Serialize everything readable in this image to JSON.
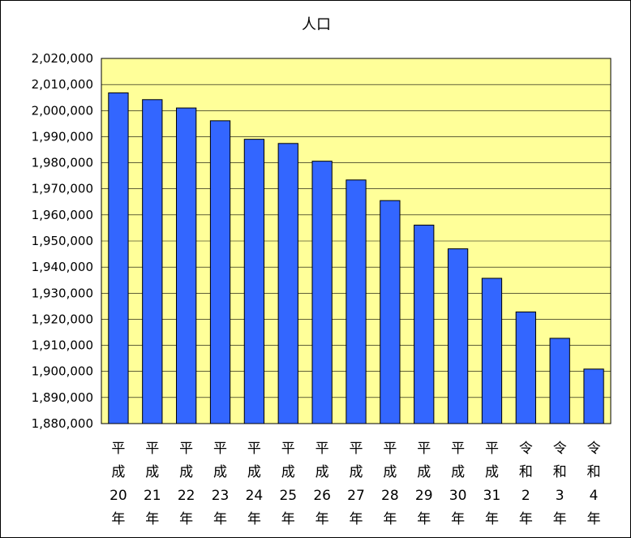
{
  "chart_data": {
    "type": "bar",
    "title": "人口",
    "xlabel": "",
    "ylabel": "",
    "ylim": [
      1880000,
      2020000
    ],
    "ytick_step": 10000,
    "grid": true,
    "legend": "none",
    "colors": {
      "plot_bg": "#ffff99",
      "bar_fill": "#3366ff",
      "bar_stroke": "#000000",
      "grid": "#000000"
    },
    "categories": [
      [
        "平",
        "成",
        "20",
        "年"
      ],
      [
        "平",
        "成",
        "21",
        "年"
      ],
      [
        "平",
        "成",
        "22",
        "年"
      ],
      [
        "平",
        "成",
        "23",
        "年"
      ],
      [
        "平",
        "成",
        "24",
        "年"
      ],
      [
        "平",
        "成",
        "25",
        "年"
      ],
      [
        "平",
        "成",
        "26",
        "年"
      ],
      [
        "平",
        "成",
        "27",
        "年"
      ],
      [
        "平",
        "成",
        "28",
        "年"
      ],
      [
        "平",
        "成",
        "29",
        "年"
      ],
      [
        "平",
        "成",
        "30",
        "年"
      ],
      [
        "平",
        "成",
        "31",
        "年"
      ],
      [
        "令",
        "和",
        "2",
        "年"
      ],
      [
        "令",
        "和",
        "3",
        "年"
      ],
      [
        "令",
        "和",
        "4",
        "年"
      ]
    ],
    "values": [
      2006800,
      2004200,
      2001000,
      1996100,
      1989000,
      1987400,
      1980600,
      1973400,
      1965500,
      1956100,
      1947000,
      1935700,
      1922800,
      1912700,
      1900900
    ],
    "ytick_labels": [
      "2,020,000",
      "2,010,000",
      "2,000,000",
      "1,990,000",
      "1,980,000",
      "1,970,000",
      "1,960,000",
      "1,950,000",
      "1,940,000",
      "1,930,000",
      "1,920,000",
      "1,910,000",
      "1,900,000",
      "1,890,000",
      "1,880,000"
    ]
  }
}
